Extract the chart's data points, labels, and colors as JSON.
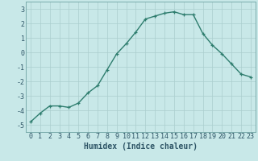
{
  "x": [
    0,
    1,
    2,
    3,
    4,
    5,
    6,
    7,
    8,
    9,
    10,
    11,
    12,
    13,
    14,
    15,
    16,
    17,
    18,
    19,
    20,
    21,
    22,
    23
  ],
  "y": [
    -4.8,
    -4.2,
    -3.7,
    -3.7,
    -3.8,
    -3.5,
    -2.8,
    -2.3,
    -1.2,
    -0.1,
    0.6,
    1.4,
    2.3,
    2.5,
    2.7,
    2.8,
    2.6,
    2.6,
    1.3,
    0.5,
    -0.1,
    -0.8,
    -1.5,
    -1.7
  ],
  "line_color": "#2e7d6e",
  "marker": "+",
  "marker_size": 3,
  "bg_color": "#c8e8e8",
  "grid_color": "#aacece",
  "xlabel": "Humidex (Indice chaleur)",
  "xlim": [
    -0.5,
    23.5
  ],
  "ylim": [
    -5.5,
    3.5
  ],
  "yticks": [
    -5,
    -4,
    -3,
    -2,
    -1,
    0,
    1,
    2,
    3
  ],
  "xticks": [
    0,
    1,
    2,
    3,
    4,
    5,
    6,
    7,
    8,
    9,
    10,
    11,
    12,
    13,
    14,
    15,
    16,
    17,
    18,
    19,
    20,
    21,
    22,
    23
  ],
  "tick_fontsize": 6,
  "label_fontsize": 7,
  "line_width": 1.0,
  "marker_color": "#2e7d6e",
  "text_color": "#2e5566"
}
